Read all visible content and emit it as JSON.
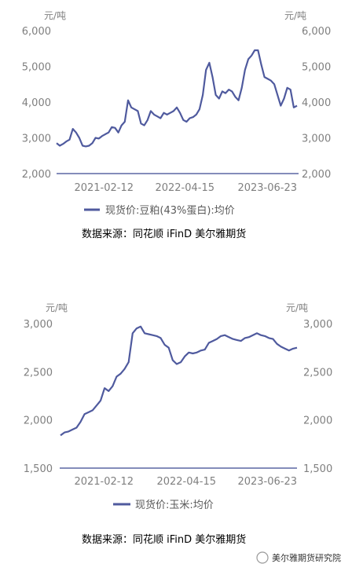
{
  "chart_data": [
    {
      "type": "line",
      "unit_left": "元/吨",
      "unit_right": "元/吨",
      "yticks": [
        "6,000",
        "5,000",
        "4,000",
        "3,000",
        "2,000"
      ],
      "ylim": [
        2000,
        6000
      ],
      "xticks": [
        "2021-02-12",
        "2022-04-15",
        "2023-06-23"
      ],
      "series": [
        {
          "name": "现货价:豆粕(43%蛋白):均价",
          "color": "#4f5a9e",
          "values": [
            2850,
            2780,
            2830,
            2900,
            2950,
            3250,
            3150,
            3000,
            2780,
            2760,
            2780,
            2850,
            3000,
            2980,
            3050,
            3100,
            3150,
            3300,
            3280,
            3150,
            3350,
            3450,
            4050,
            3850,
            3800,
            3750,
            3400,
            3350,
            3500,
            3750,
            3650,
            3600,
            3550,
            3700,
            3650,
            3700,
            3750,
            3850,
            3700,
            3500,
            3450,
            3550,
            3580,
            3650,
            3800,
            4200,
            4900,
            5100,
            4700,
            4200,
            4100,
            4300,
            4250,
            4350,
            4300,
            4150,
            4050,
            4400,
            4900,
            5200,
            5300,
            5450,
            5450,
            5050,
            4700,
            4650,
            4600,
            4500,
            4200,
            3900,
            4100,
            4400,
            4350,
            3850,
            3900
          ]
        }
      ],
      "legend": "现货价:豆粕(43%蛋白):均价",
      "source": "数据来源：同花顺 iFinD   美尔雅期货"
    },
    {
      "type": "line",
      "unit_left": "元/吨",
      "unit_right": "元/吨",
      "yticks": [
        "3,000",
        "2,500",
        "2,000",
        "1,500"
      ],
      "ylim": [
        1500,
        3000
      ],
      "xticks": [
        "2021-02-12",
        "2022-04-15",
        "2023-06-23"
      ],
      "series": [
        {
          "name": "现货价:玉米:均价",
          "color": "#4f5a9e",
          "values": [
            1840,
            1870,
            1880,
            1900,
            1920,
            1980,
            2060,
            2080,
            2100,
            2150,
            2200,
            2330,
            2300,
            2350,
            2450,
            2480,
            2530,
            2600,
            2900,
            2950,
            2970,
            2900,
            2890,
            2880,
            2870,
            2850,
            2780,
            2750,
            2620,
            2580,
            2600,
            2660,
            2700,
            2690,
            2700,
            2720,
            2730,
            2800,
            2820,
            2840,
            2870,
            2880,
            2860,
            2840,
            2830,
            2820,
            2850,
            2860,
            2880,
            2900,
            2880,
            2870,
            2850,
            2840,
            2790,
            2760,
            2740,
            2720,
            2740,
            2750
          ]
        }
      ],
      "legend": "现货价:玉米:均价",
      "source": "数据来源：同花顺 iFinD   美尔雅期货"
    }
  ],
  "watermark": "美尔雅期货研究院"
}
